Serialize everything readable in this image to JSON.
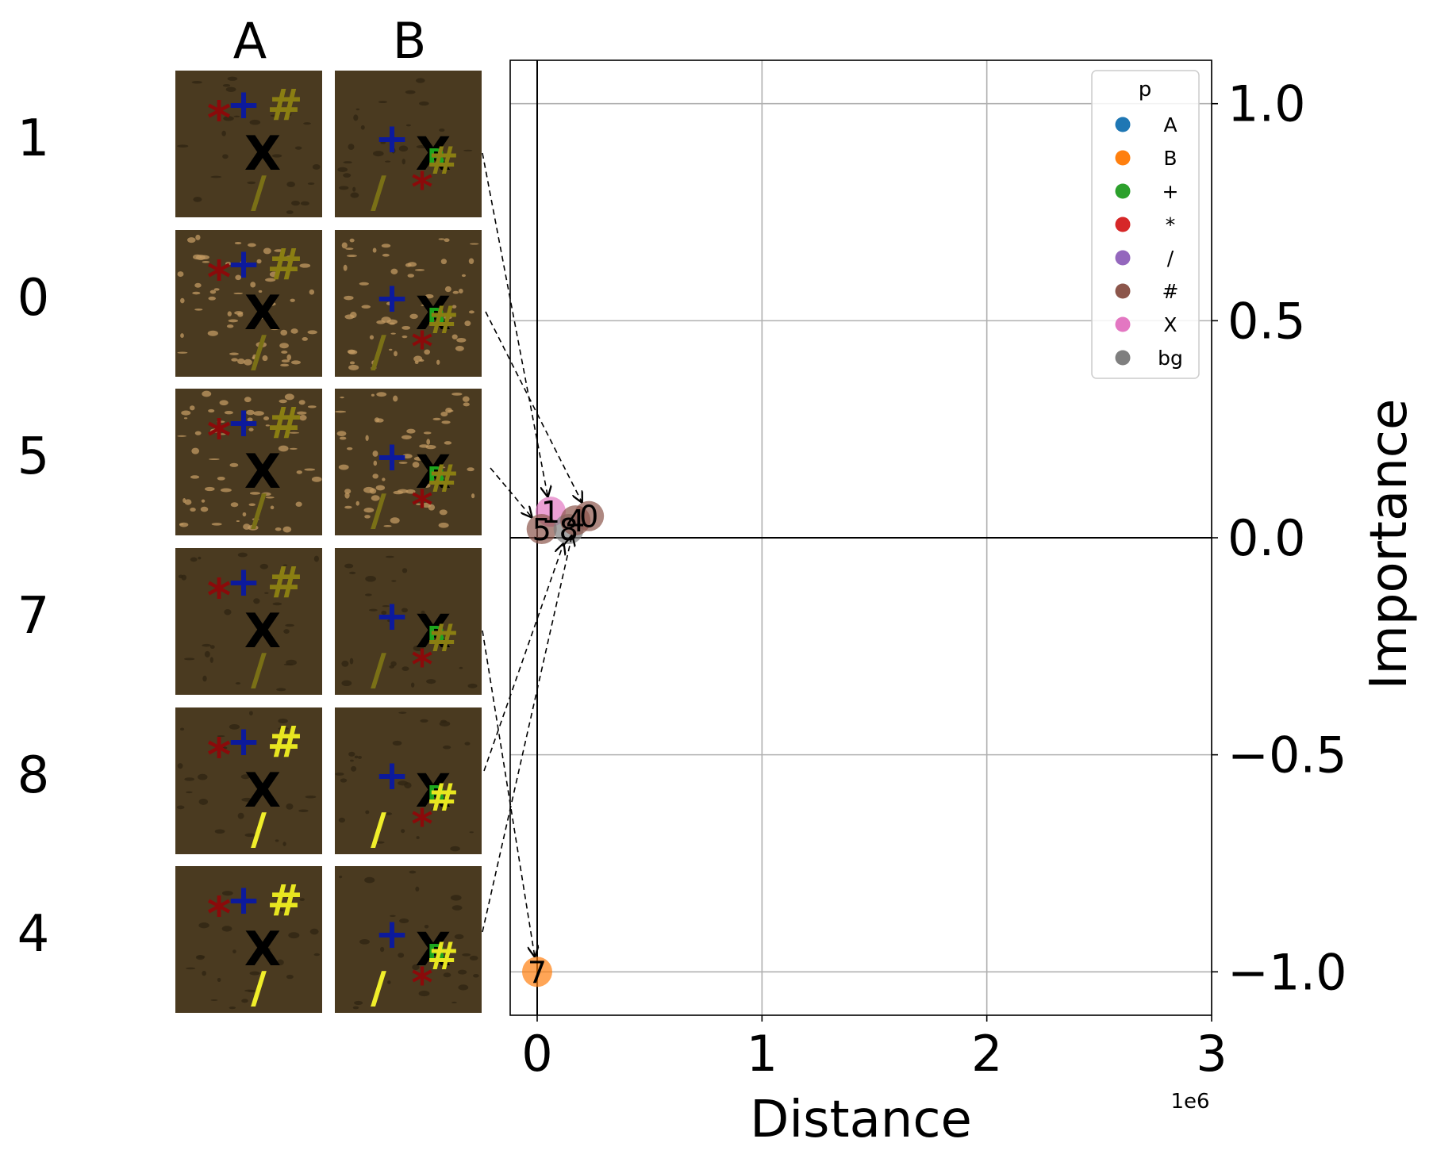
{
  "figure": {
    "column_labels": [
      "A",
      "B"
    ],
    "row_labels": [
      "1",
      "0",
      "5",
      "7",
      "8",
      "4"
    ]
  },
  "symbols": {
    "star": "*",
    "plus": "+",
    "hash": "#",
    "x": "X",
    "slash": "/",
    "b": "B"
  },
  "colors": {
    "background_brown": "#4a3a20",
    "A": "#1f77b4",
    "B": "#ff7f0e",
    "+": "#2ca02c",
    "*": "#d62728",
    "/": "#9467bd",
    "#": "#8c564b",
    "X": "#e377c2",
    "bg": "#7f7f7f"
  },
  "chart_data": {
    "type": "scatter",
    "xlabel": "Distance",
    "ylabel": "Importance",
    "x_scale_label": "1e6",
    "xlim": [
      -120000,
      3000000
    ],
    "ylim": [
      -1.1,
      1.1
    ],
    "xticks": [
      0,
      1000000,
      2000000,
      3000000
    ],
    "xtick_labels": [
      "0",
      "1",
      "2",
      "3"
    ],
    "yticks": [
      1.0,
      0.5,
      0.0,
      -0.5,
      -1.0
    ],
    "ytick_labels": [
      "1.0",
      "0.5",
      "0.0",
      "−0.5",
      "−1.0"
    ],
    "grid": true,
    "legend": {
      "title": "p",
      "placement": "top-right",
      "entries": [
        "A",
        "B",
        "+",
        "*",
        "/",
        "#",
        "X",
        "bg"
      ]
    },
    "points": [
      {
        "label": "1",
        "category": "X",
        "x": 60000,
        "y": 0.06
      },
      {
        "label": "0",
        "category": "#",
        "x": 230000,
        "y": 0.05
      },
      {
        "label": "5",
        "category": "#",
        "x": 20000,
        "y": 0.02
      },
      {
        "label": "7",
        "category": "B",
        "x": 0,
        "y": -1.0
      },
      {
        "label": "8",
        "category": "bg",
        "x": 140000,
        "y": 0.02
      },
      {
        "label": "4",
        "category": "#",
        "x": 170000,
        "y": 0.04
      }
    ]
  }
}
